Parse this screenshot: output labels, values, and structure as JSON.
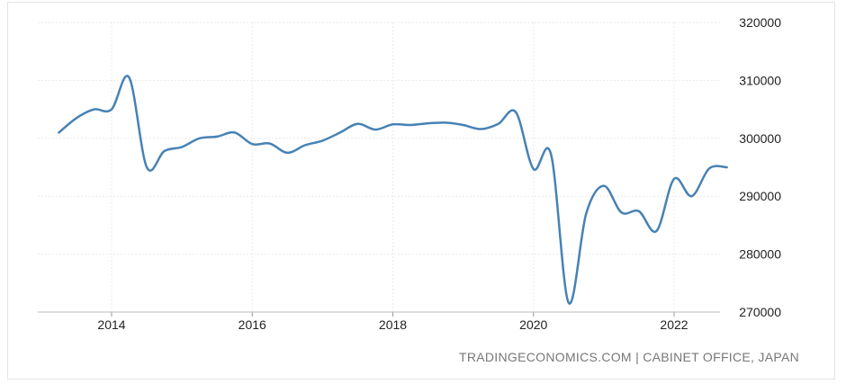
{
  "chart_data": {
    "type": "line",
    "title": "",
    "xlabel": "",
    "ylabel": "",
    "x_ticks": [
      "2014",
      "2016",
      "2018",
      "2020",
      "2022"
    ],
    "y_ticks": [
      "270000",
      "280000",
      "290000",
      "300000",
      "310000",
      "320000"
    ],
    "ylim": [
      270000,
      320000
    ],
    "xlim": [
      2013.0,
      2023.0
    ],
    "grid": true,
    "legend": "none",
    "series": [
      {
        "color": "#4682b4",
        "x": [
          2013.25,
          2013.5,
          2013.75,
          2014.0,
          2014.25,
          2014.5,
          2014.75,
          2015.0,
          2015.25,
          2015.5,
          2015.75,
          2016.0,
          2016.25,
          2016.5,
          2016.75,
          2017.0,
          2017.25,
          2017.5,
          2017.75,
          2018.0,
          2018.25,
          2018.5,
          2018.75,
          2019.0,
          2019.25,
          2019.5,
          2019.75,
          2020.0,
          2020.25,
          2020.5,
          2020.75,
          2021.0,
          2021.25,
          2021.5,
          2021.75,
          2022.0,
          2022.25,
          2022.5,
          2022.75
        ],
        "y": [
          301000,
          303500,
          305000,
          305000,
          310500,
          295000,
          297800,
          298500,
          300000,
          300300,
          301000,
          299000,
          299100,
          297500,
          298800,
          299600,
          301000,
          302500,
          301500,
          302400,
          302300,
          302600,
          302700,
          302300,
          301600,
          302500,
          304500,
          294700,
          297200,
          271600,
          287000,
          291800,
          287200,
          287400,
          284000,
          293000,
          290000,
          294800,
          295000
        ]
      }
    ]
  },
  "source_text": "TRADINGECONOMICS.COM | CABINET OFFICE, JAPAN"
}
